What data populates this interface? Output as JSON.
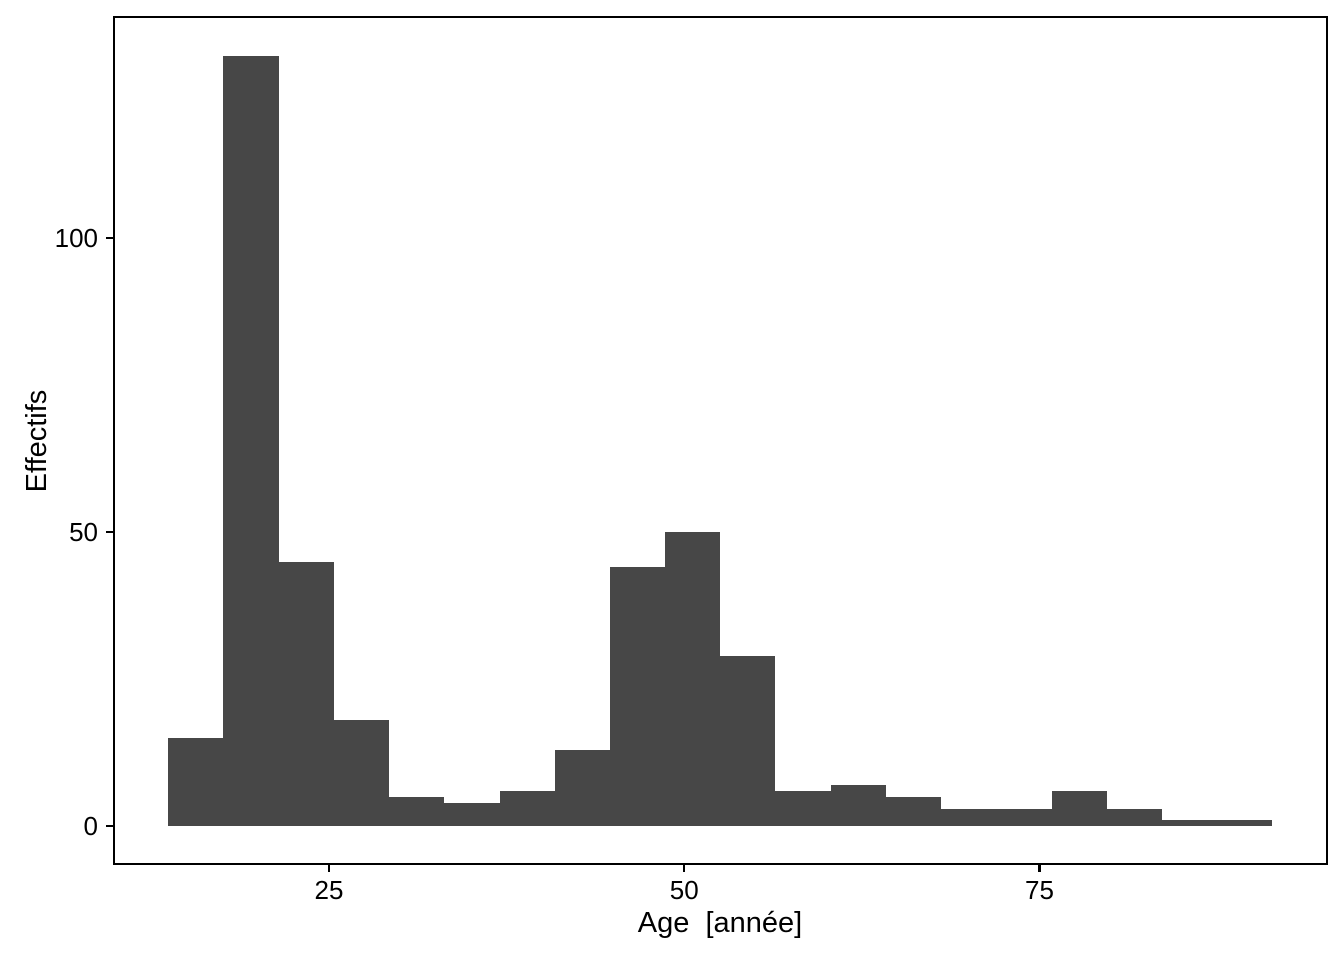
{
  "chart_data": {
    "type": "bar",
    "subtype": "histogram",
    "title": "",
    "xlabel": "Age  [année]",
    "ylabel": "Effectifs",
    "bin_edges": [
      13.68,
      17.57,
      21.45,
      25.34,
      29.22,
      33.11,
      37.0,
      40.88,
      44.77,
      48.65,
      52.54,
      56.42,
      60.31,
      64.19,
      68.08,
      71.96,
      75.85,
      79.73,
      83.62,
      87.51,
      91.39
    ],
    "counts": [
      15,
      131,
      45,
      18,
      5,
      4,
      6,
      13,
      44,
      50,
      29,
      6,
      7,
      5,
      3,
      3,
      6,
      3,
      1,
      1
    ],
    "x_ticks": [
      "25",
      "50",
      "75"
    ],
    "x_tick_values": [
      25,
      50,
      75
    ],
    "y_ticks": [
      "0",
      "50",
      "100"
    ],
    "y_tick_values": [
      0,
      50,
      100
    ],
    "xlim": [
      9.8,
      95.3
    ],
    "ylim": [
      -6.6,
      137.8
    ],
    "grid": "off",
    "legend": "none",
    "colors": {
      "bar_fill": "#474747",
      "axis": "#000000",
      "panel_border": "#000000",
      "background": "#ffffff"
    }
  }
}
